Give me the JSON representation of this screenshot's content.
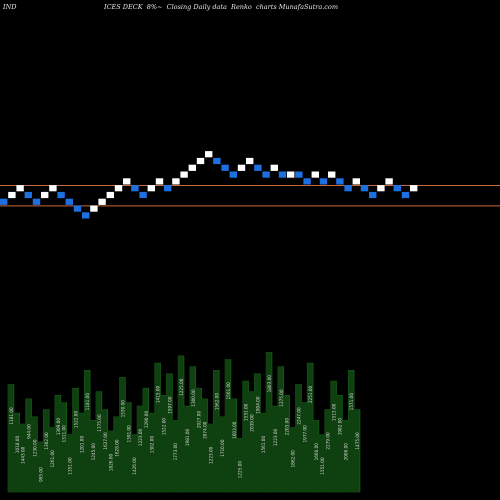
{
  "title": {
    "left": "IND",
    "center": "ICES DECK  8%~  Closing Daily data  Renko  charts MunafaSutra.com"
  },
  "colors": {
    "background": "#000000",
    "brick_up": "#ffffff",
    "brick_down": "#1e6fe0",
    "level_line": "#c8693a",
    "volume_fill": "#0f4010",
    "volume_edge": "#1d6a1d",
    "volume_label": "#d8d8d8"
  },
  "chart_data": {
    "type": "renko",
    "bricks": [
      {
        "col": 0,
        "level": 0,
        "dir": "down"
      },
      {
        "col": 1,
        "level": 1,
        "dir": "up"
      },
      {
        "col": 2,
        "level": 2,
        "dir": "up"
      },
      {
        "col": 3,
        "level": 1,
        "dir": "down"
      },
      {
        "col": 4,
        "level": 0,
        "dir": "down"
      },
      {
        "col": 5,
        "level": 1,
        "dir": "up"
      },
      {
        "col": 6,
        "level": 2,
        "dir": "up"
      },
      {
        "col": 7,
        "level": 1,
        "dir": "down"
      },
      {
        "col": 8,
        "level": 0,
        "dir": "down"
      },
      {
        "col": 9,
        "level": -1,
        "dir": "down"
      },
      {
        "col": 10,
        "level": -2,
        "dir": "down"
      },
      {
        "col": 11,
        "level": -1,
        "dir": "up"
      },
      {
        "col": 12,
        "level": 0,
        "dir": "up"
      },
      {
        "col": 13,
        "level": 1,
        "dir": "up"
      },
      {
        "col": 14,
        "level": 2,
        "dir": "up"
      },
      {
        "col": 15,
        "level": 3,
        "dir": "up"
      },
      {
        "col": 16,
        "level": 2,
        "dir": "down"
      },
      {
        "col": 17,
        "level": 1,
        "dir": "down"
      },
      {
        "col": 18,
        "level": 2,
        "dir": "up"
      },
      {
        "col": 19,
        "level": 3,
        "dir": "up"
      },
      {
        "col": 20,
        "level": 2,
        "dir": "down"
      },
      {
        "col": 21,
        "level": 3,
        "dir": "up"
      },
      {
        "col": 22,
        "level": 4,
        "dir": "up"
      },
      {
        "col": 23,
        "level": 5,
        "dir": "up"
      },
      {
        "col": 24,
        "level": 6,
        "dir": "up"
      },
      {
        "col": 25,
        "level": 7,
        "dir": "up"
      },
      {
        "col": 26,
        "level": 6,
        "dir": "down"
      },
      {
        "col": 27,
        "level": 5,
        "dir": "down"
      },
      {
        "col": 28,
        "level": 4,
        "dir": "down"
      },
      {
        "col": 29,
        "level": 5,
        "dir": "up"
      },
      {
        "col": 30,
        "level": 6,
        "dir": "up"
      },
      {
        "col": 31,
        "level": 5,
        "dir": "down"
      },
      {
        "col": 32,
        "level": 4,
        "dir": "down"
      },
      {
        "col": 33,
        "level": 5,
        "dir": "up"
      },
      {
        "col": 34,
        "level": 4,
        "dir": "down"
      },
      {
        "col": 35,
        "level": 4,
        "dir": "up"
      },
      {
        "col": 36,
        "level": 4,
        "dir": "down"
      },
      {
        "col": 37,
        "level": 3,
        "dir": "down"
      },
      {
        "col": 38,
        "level": 4,
        "dir": "up"
      },
      {
        "col": 39,
        "level": 3,
        "dir": "down"
      },
      {
        "col": 40,
        "level": 4,
        "dir": "up"
      },
      {
        "col": 41,
        "level": 3,
        "dir": "down"
      },
      {
        "col": 42,
        "level": 2,
        "dir": "down"
      },
      {
        "col": 43,
        "level": 3,
        "dir": "up"
      },
      {
        "col": 44,
        "level": 2,
        "dir": "down"
      },
      {
        "col": 45,
        "level": 1,
        "dir": "down"
      },
      {
        "col": 46,
        "level": 2,
        "dir": "up"
      },
      {
        "col": 47,
        "level": 3,
        "dir": "up"
      },
      {
        "col": 48,
        "level": 2,
        "dir": "down"
      },
      {
        "col": 49,
        "level": 1,
        "dir": "down"
      },
      {
        "col": 50,
        "level": 2,
        "dir": "up"
      }
    ],
    "reference_lines": [
      {
        "level": 2.5
      },
      {
        "level": -0.5
      }
    ],
    "volume_values": [
      3000,
      2200,
      1900,
      2600,
      2100,
      1400,
      2300,
      1800,
      2700,
      2500,
      1600,
      2900,
      2200,
      3400,
      2000,
      2800,
      2300,
      1700,
      2100,
      3200,
      2500,
      1600,
      2400,
      2900,
      2200,
      3600,
      2700,
      3300,
      2000,
      3800,
      2400,
      3500,
      2900,
      2600,
      1900,
      3400,
      2100,
      3700,
      2600,
      1500,
      3100,
      2800,
      3300,
      2200,
      3900,
      2400,
      3500,
      2700,
      1800,
      3000,
      2500,
      3600,
      2000,
      1600,
      2300,
      3100,
      2700,
      2000,
      3400,
      2300
    ],
    "volume_labels": [
      "1181.00",
      "1018.00",
      "1443.00",
      "944.00",
      "1230.00",
      "995.00",
      "1302.00",
      "1261.00",
      "1309.00",
      "1311.00",
      "1351.00",
      "1522.00",
      "1201.00",
      "1181.00",
      "1245.00",
      "1775.00",
      "1627.00",
      "1826.00",
      "1628.00",
      "1530.00",
      "1391.00",
      "1426.00",
      "1223.00",
      "1290.00",
      "1302.00",
      "1415.00",
      "1522.00",
      "1597.00",
      "1773.00",
      "1225.00",
      "1981.00",
      "1300.00",
      "2027.00",
      "2074.00",
      "1223.00",
      "1562.00",
      "1710.00",
      "1561.00",
      "1603.00",
      "1225.00",
      "1531.00",
      "2039.00",
      "1904.00",
      "1561.00",
      "1803.00",
      "1223.00",
      "1275.00",
      "2203.00",
      "1862.00",
      "2247.00",
      "1977.00",
      "2251.00",
      "1660.00",
      "1551.00",
      "2279.00",
      "1515.00",
      "1982.00",
      "2006.00",
      "1571.00",
      "1475.00"
    ]
  }
}
